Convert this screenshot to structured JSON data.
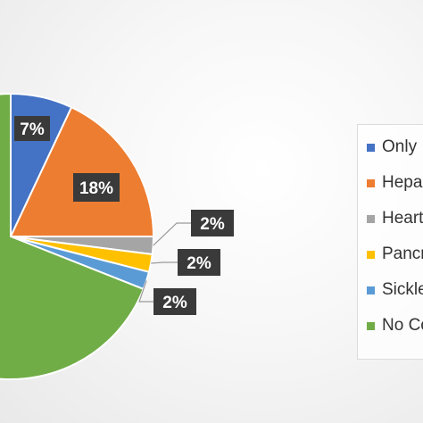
{
  "chart_data": {
    "type": "pie",
    "series": [
      {
        "name": "Only",
        "value": 7,
        "label": "7%",
        "color": "#4472c4"
      },
      {
        "name": "Hepa",
        "value": 18,
        "label": "18%",
        "color": "#ed7d31"
      },
      {
        "name": "Heart",
        "value": 2,
        "label": "2%",
        "color": "#a5a5a5"
      },
      {
        "name": "Pancr",
        "value": 2,
        "label": "2%",
        "color": "#ffc000"
      },
      {
        "name": "Sickle",
        "value": 2,
        "label": "2%",
        "color": "#5b9bd5"
      },
      {
        "name": "No Co",
        "value": 69,
        "label": "",
        "color": "#70ad47"
      }
    ],
    "legend": "right"
  }
}
